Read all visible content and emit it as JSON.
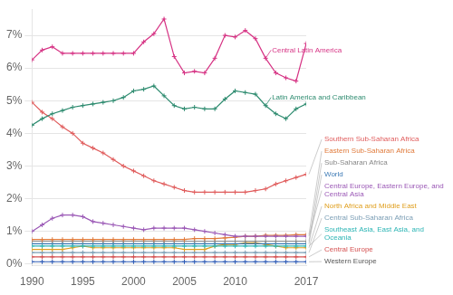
{
  "chart_data": {
    "type": "line",
    "x": [
      1990,
      1991,
      1992,
      1993,
      1994,
      1995,
      1996,
      1997,
      1998,
      1999,
      2000,
      2001,
      2002,
      2003,
      2004,
      2005,
      2006,
      2007,
      2008,
      2009,
      2010,
      2011,
      2012,
      2013,
      2014,
      2015,
      2016,
      2017
    ],
    "series": [
      {
        "name": "Central Latin America",
        "color": "#d63384",
        "values": [
          6.25,
          6.55,
          6.65,
          6.45,
          6.45,
          6.45,
          6.45,
          6.45,
          6.45,
          6.45,
          6.45,
          6.8,
          7.05,
          7.5,
          6.35,
          5.85,
          5.9,
          5.85,
          6.3,
          7.0,
          6.95,
          7.15,
          6.9,
          6.3,
          5.85,
          5.7,
          5.6,
          6.75
        ]
      },
      {
        "name": "Latin America and Caribbean",
        "color": "#2d8b6f",
        "values": [
          4.25,
          4.45,
          4.6,
          4.7,
          4.8,
          4.85,
          4.9,
          4.95,
          5.0,
          5.1,
          5.3,
          5.35,
          5.45,
          5.15,
          4.85,
          4.75,
          4.8,
          4.75,
          4.75,
          5.05,
          5.3,
          5.25,
          5.2,
          4.85,
          4.6,
          4.45,
          4.75,
          4.9
        ]
      },
      {
        "name": "Southern Sub-Saharan Africa",
        "color": "#e05c5c",
        "values": [
          4.95,
          4.65,
          4.45,
          4.2,
          4.0,
          3.7,
          3.55,
          3.4,
          3.2,
          3.0,
          2.85,
          2.7,
          2.55,
          2.45,
          2.35,
          2.25,
          2.2,
          2.2,
          2.2,
          2.2,
          2.2,
          2.2,
          2.25,
          2.3,
          2.45,
          2.55,
          2.65,
          2.75
        ]
      },
      {
        "name": "Central Europe, Eastern Europe, and Central Asia",
        "color": "#9b59b6",
        "values": [
          1.0,
          1.2,
          1.4,
          1.5,
          1.5,
          1.45,
          1.3,
          1.25,
          1.2,
          1.15,
          1.1,
          1.05,
          1.1,
          1.1,
          1.1,
          1.1,
          1.05,
          1.0,
          0.95,
          0.9,
          0.85,
          0.85,
          0.85,
          0.85,
          0.85,
          0.85,
          0.85,
          0.85
        ]
      },
      {
        "name": "Eastern Sub-Saharan Africa",
        "color": "#e07b3c",
        "values": [
          0.75,
          0.75,
          0.75,
          0.75,
          0.75,
          0.75,
          0.75,
          0.75,
          0.75,
          0.75,
          0.75,
          0.75,
          0.75,
          0.75,
          0.75,
          0.75,
          0.78,
          0.78,
          0.78,
          0.8,
          0.82,
          0.85,
          0.85,
          0.88,
          0.88,
          0.88,
          0.9,
          0.9
        ]
      },
      {
        "name": "Sub-Saharan Africa",
        "color": "#888888",
        "values": [
          0.7,
          0.7,
          0.7,
          0.7,
          0.7,
          0.7,
          0.7,
          0.7,
          0.7,
          0.7,
          0.7,
          0.7,
          0.7,
          0.7,
          0.7,
          0.7,
          0.7,
          0.7,
          0.7,
          0.7,
          0.7,
          0.7,
          0.7,
          0.7,
          0.7,
          0.7,
          0.7,
          0.7
        ]
      },
      {
        "name": "Southeast Asia, East Asia, and Oceania",
        "color": "#2db5b5",
        "values": [
          0.55,
          0.55,
          0.55,
          0.55,
          0.55,
          0.55,
          0.55,
          0.55,
          0.55,
          0.55,
          0.55,
          0.55,
          0.55,
          0.55,
          0.55,
          0.55,
          0.55,
          0.55,
          0.55,
          0.55,
          0.55,
          0.55,
          0.55,
          0.55,
          0.55,
          0.55,
          0.55,
          0.55
        ]
      },
      {
        "name": "World",
        "color": "#3d7ab5",
        "values": [
          0.62,
          0.62,
          0.62,
          0.62,
          0.62,
          0.62,
          0.62,
          0.62,
          0.62,
          0.62,
          0.62,
          0.62,
          0.62,
          0.62,
          0.62,
          0.62,
          0.62,
          0.62,
          0.62,
          0.62,
          0.62,
          0.62,
          0.62,
          0.62,
          0.62,
          0.62,
          0.62,
          0.62
        ]
      },
      {
        "name": "North Africa and Middle East",
        "color": "#e0a020",
        "values": [
          0.45,
          0.45,
          0.45,
          0.45,
          0.5,
          0.55,
          0.5,
          0.5,
          0.5,
          0.5,
          0.5,
          0.5,
          0.5,
          0.5,
          0.5,
          0.45,
          0.45,
          0.45,
          0.55,
          0.6,
          0.6,
          0.65,
          0.65,
          0.6,
          0.55,
          0.5,
          0.5,
          0.5
        ]
      },
      {
        "name": "Central Sub-Saharan Africa",
        "color": "#7b9eb5",
        "values": [
          0.35,
          0.35,
          0.35,
          0.35,
          0.35,
          0.35,
          0.35,
          0.35,
          0.35,
          0.35,
          0.35,
          0.35,
          0.35,
          0.35,
          0.35,
          0.35,
          0.35,
          0.35,
          0.35,
          0.35,
          0.35,
          0.35,
          0.35,
          0.35,
          0.35,
          0.35,
          0.35,
          0.35
        ]
      },
      {
        "name": "Central Europe",
        "color": "#d45050",
        "values": [
          0.22,
          0.22,
          0.22,
          0.22,
          0.22,
          0.22,
          0.22,
          0.22,
          0.22,
          0.22,
          0.22,
          0.22,
          0.22,
          0.22,
          0.22,
          0.22,
          0.22,
          0.22,
          0.22,
          0.22,
          0.22,
          0.22,
          0.22,
          0.22,
          0.22,
          0.22,
          0.22,
          0.22
        ]
      },
      {
        "name": "Western Europe",
        "color": "#2d5ab5",
        "values": [
          0.07,
          0.07,
          0.07,
          0.07,
          0.07,
          0.07,
          0.07,
          0.07,
          0.07,
          0.07,
          0.07,
          0.07,
          0.07,
          0.07,
          0.07,
          0.07,
          0.07,
          0.07,
          0.07,
          0.07,
          0.07,
          0.07,
          0.07,
          0.07,
          0.07,
          0.07,
          0.07,
          0.07
        ]
      }
    ],
    "xlim": [
      1990,
      2017
    ],
    "xticks": [
      1990,
      1995,
      2000,
      2005,
      2010,
      2017
    ],
    "ylim": [
      -0.05,
      7.8
    ],
    "yticks": [
      {
        "value": 0,
        "label": "0%"
      },
      {
        "value": 1,
        "label": "1%"
      },
      {
        "value": 2,
        "label": "2%"
      },
      {
        "value": 3,
        "label": "3%"
      },
      {
        "value": 4,
        "label": "4%"
      },
      {
        "value": 5,
        "label": "5%"
      },
      {
        "value": 6,
        "label": "6%"
      },
      {
        "value": 7,
        "label": "7%"
      }
    ],
    "grid": "y",
    "marker": "+",
    "annotations": [
      {
        "text": "Central Latin America",
        "series": "Central Latin America",
        "x": 2013,
        "color": "#d63384"
      },
      {
        "text": "Latin America and Caribbean",
        "series": "Latin America and Caribbean",
        "x": 2013,
        "color": "#2d8b6f"
      },
      {
        "text": "Southern Sub-Saharan Africa",
        "series": "Southern Sub-Saharan Africa",
        "color": "#e05c5c"
      },
      {
        "text": "Eastern Sub-Saharan Africa",
        "series": "Eastern Sub-Saharan Africa",
        "color": "#e07b3c"
      },
      {
        "text": "Sub-Saharan Africa",
        "series": "Sub-Saharan Africa",
        "color": "#888888"
      },
      {
        "text": "World",
        "series": "World",
        "color": "#3d7ab5"
      },
      {
        "text": "Central Europe, Eastern Europe, and\nCentral Asia",
        "series": "Central Europe, Eastern Europe, and Central Asia",
        "color": "#9b59b6"
      },
      {
        "text": "North Africa and Middle East",
        "series": "North Africa and Middle East",
        "color": "#e0a020"
      },
      {
        "text": "Central Sub-Saharan Africa",
        "series": "Central Sub-Saharan Africa",
        "color": "#7b9eb5"
      },
      {
        "text": "Southeast Asia, East Asia, and\nOceania",
        "series": "Southeast Asia, East Asia, and Oceania",
        "color": "#2db5b5"
      },
      {
        "text": "Central Europe",
        "series": "Central Europe",
        "color": "#d45050"
      },
      {
        "text": "Western Europe",
        "series": "Western Europe",
        "color": "#555555"
      }
    ]
  }
}
